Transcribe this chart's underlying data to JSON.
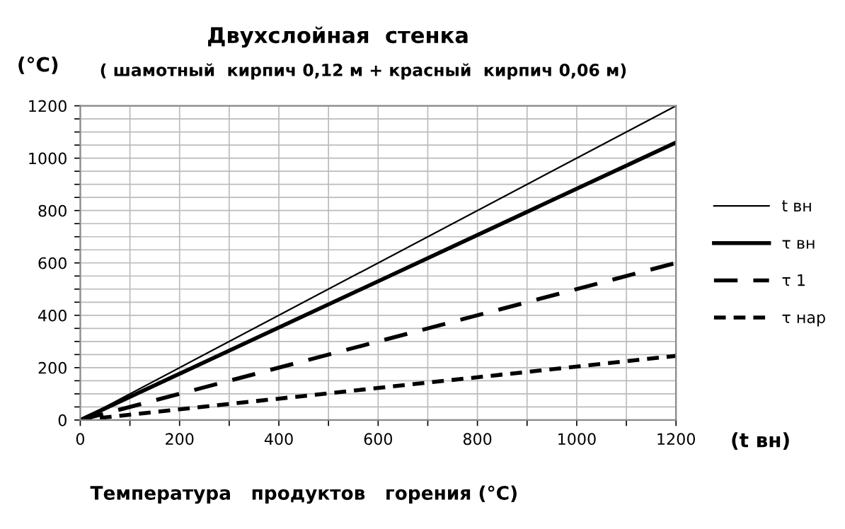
{
  "chart_data": {
    "type": "line",
    "title": "Двухслойная  стенка",
    "subtitle": "( шамотный  кирпич 0,12 м + красный  кирпич 0,06 м)",
    "ylabel": "(°C)",
    "xlabel": "Температура   продуктов   горения (°C)",
    "annotations": [
      "(t вн)"
    ],
    "x": [
      0,
      1200
    ],
    "series": [
      {
        "name": "t вн",
        "color": "#000000",
        "values": [
          0,
          1200
        ],
        "line_style": "solid"
      },
      {
        "name": "τ вн",
        "color": "#000000",
        "values": [
          0,
          1060
        ],
        "line_style": "solid"
      },
      {
        "name": "τ 1",
        "color": "#000000",
        "values": [
          0,
          600
        ],
        "line_style": "dashed"
      },
      {
        "name": "τ нар",
        "color": "#000000",
        "values": [
          0,
          245
        ],
        "line_style": "dotted"
      }
    ],
    "xlim": [
      0,
      1200
    ],
    "ylim": [
      0,
      1200
    ],
    "xticks": [
      0,
      {
        "value": 100,
        "label": null
      },
      200,
      {
        "value": 300,
        "label": null
      },
      400,
      {
        "value": 500,
        "label": null
      },
      600,
      {
        "value": 700,
        "label": null
      },
      800,
      {
        "value": 900,
        "label": null
      },
      1000,
      {
        "value": 1100,
        "label": null
      },
      1200
    ],
    "yticks": [
      0,
      {
        "value": 50,
        "label": null
      },
      {
        "value": 100,
        "label": null
      },
      {
        "value": 150,
        "label": null
      },
      200,
      {
        "value": 250,
        "label": null
      },
      {
        "value": 300,
        "label": null
      },
      {
        "value": 350,
        "label": null
      },
      400,
      {
        "value": 450,
        "label": null
      },
      {
        "value": 500,
        "label": null
      },
      {
        "value": 550,
        "label": null
      },
      600,
      {
        "value": 650,
        "label": null
      },
      {
        "value": 700,
        "label": null
      },
      {
        "value": 750,
        "label": null
      },
      800,
      {
        "value": 850,
        "label": null
      },
      {
        "value": 900,
        "label": null
      },
      {
        "value": 950,
        "label": null
      },
      1000,
      {
        "value": 1050,
        "label": null
      },
      {
        "value": 1100,
        "label": null
      },
      {
        "value": 1150,
        "label": null
      },
      1200
    ],
    "grid": true,
    "legend": "right",
    "marker": "none"
  }
}
